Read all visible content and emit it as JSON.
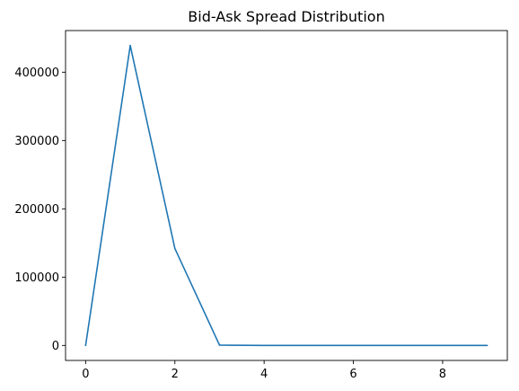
{
  "chart_data": {
    "type": "line",
    "title": "Bid-Ask Spread Distribution",
    "xlabel": "",
    "ylabel": "",
    "x": [
      0,
      1,
      2,
      3,
      4,
      5,
      6,
      7,
      8,
      9
    ],
    "series": [
      {
        "values": [
          0,
          439000,
          142000,
          500,
          0,
          0,
          0,
          0,
          0,
          0
        ],
        "color": "#1f77b4"
      }
    ],
    "xlim": [
      -0.45,
      9.45
    ],
    "ylim": [
      -21950,
      460950
    ],
    "xticks": [
      0,
      2,
      4,
      6,
      8
    ],
    "xtick_labels": [
      "0",
      "2",
      "4",
      "6",
      "8"
    ],
    "yticks": [
      0,
      100000,
      200000,
      300000,
      400000
    ],
    "ytick_labels": [
      "0",
      "100000",
      "200000",
      "300000",
      "400000"
    ],
    "grid": false,
    "legend": "none"
  }
}
